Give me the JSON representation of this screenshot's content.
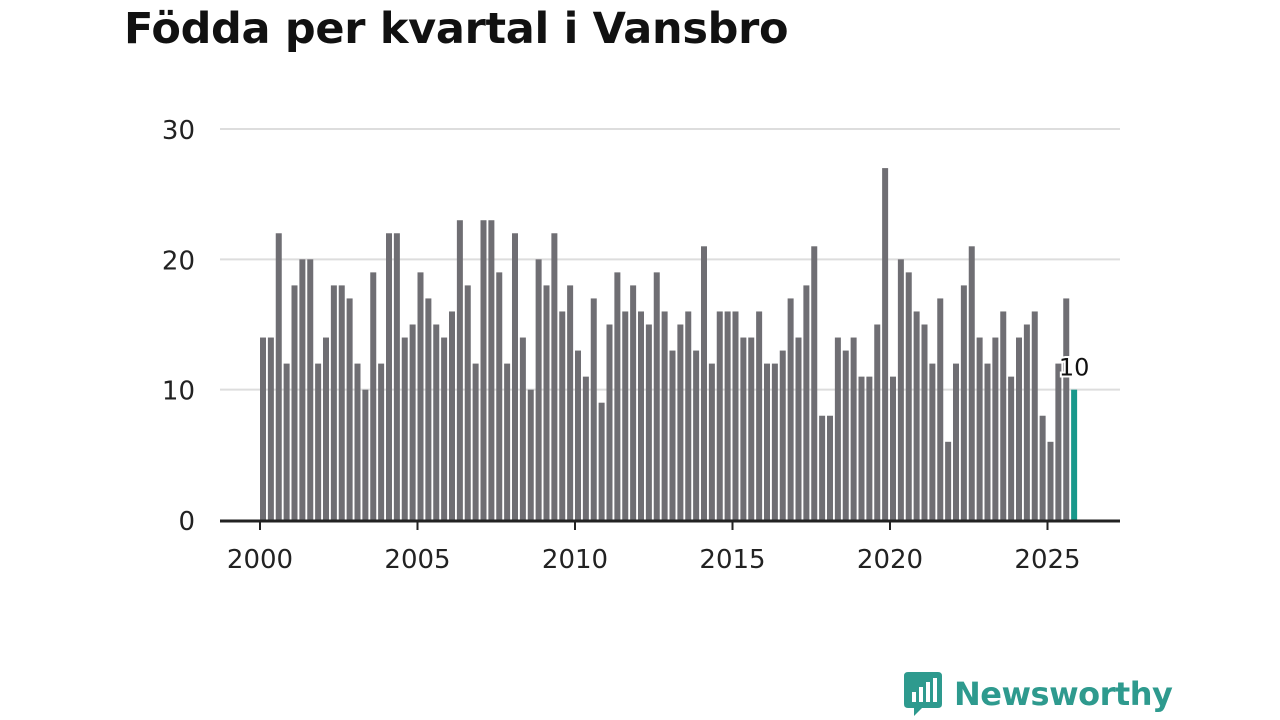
{
  "title": "Födda per kvartal i Vansbro",
  "brand": {
    "name": "Newsworthy"
  },
  "colors": {
    "bar": "#6f6e73",
    "highlight": "#18988b",
    "grid": "#dddddd",
    "axis": "#222222",
    "brand": "#2e9a8e"
  },
  "chart_data": {
    "type": "bar",
    "title": "Födda per kvartal i Vansbro",
    "xlabel": "",
    "ylabel": "",
    "ylim": [
      0,
      30
    ],
    "yticks": [
      0,
      10,
      20,
      30
    ],
    "xticks": [
      2000,
      2005,
      2010,
      2015,
      2020,
      2025
    ],
    "start_year": 2000,
    "start_quarter": 1,
    "values": [
      14,
      14,
      22,
      12,
      18,
      20,
      20,
      12,
      14,
      18,
      18,
      17,
      12,
      10,
      19,
      12,
      22,
      22,
      14,
      15,
      19,
      17,
      15,
      14,
      16,
      23,
      18,
      12,
      23,
      23,
      19,
      12,
      22,
      14,
      10,
      20,
      18,
      22,
      16,
      18,
      13,
      11,
      17,
      9,
      15,
      19,
      16,
      18,
      16,
      15,
      19,
      16,
      13,
      15,
      16,
      13,
      21,
      12,
      16,
      16,
      16,
      14,
      14,
      16,
      12,
      12,
      13,
      17,
      14,
      18,
      21,
      8,
      8,
      14,
      13,
      14,
      11,
      11,
      15,
      27,
      11,
      20,
      19,
      16,
      15,
      12,
      17,
      6,
      12,
      18,
      21,
      14,
      12,
      14,
      16,
      11,
      14,
      15,
      16,
      8,
      6,
      12,
      17,
      10
    ],
    "highlight_index": 103,
    "highlight_label": "10"
  }
}
